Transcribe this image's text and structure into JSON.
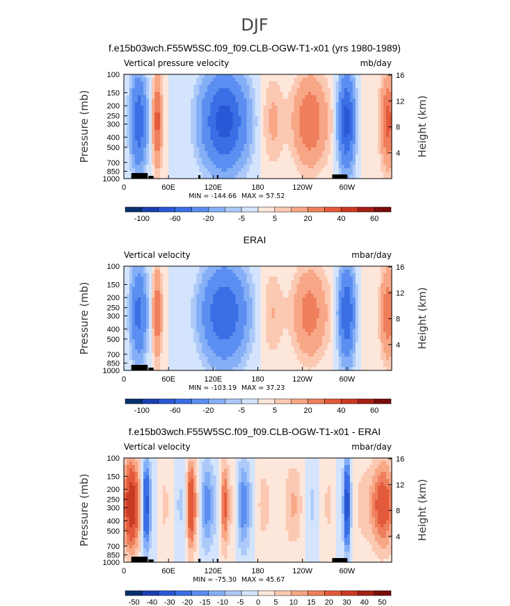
{
  "figure": {
    "title": "DJF"
  },
  "chart_data": [
    {
      "type": "heatmap",
      "title": "f.e15b03wch.F55W5SC.f09_f09.CLB-OGW-T1-x01 (yrs 1980-1989)",
      "left_label": "Vertical pressure velocity",
      "units": "mb/day",
      "ylabel": "Pressure (mb)",
      "ylabel_right": "Height (km)",
      "xticks": [
        "0",
        "60E",
        "120E",
        "180",
        "120W",
        "60W"
      ],
      "yticks": [
        "100",
        "150",
        "200",
        "250",
        "300",
        "400",
        "500",
        "700",
        "850",
        "1000"
      ],
      "yticks_right": [
        "16",
        "12",
        "8",
        "4"
      ],
      "min_label": "MIN = -144.66",
      "max_label": "MAX = 57.52",
      "colorbar_labels": [
        "-100",
        "-60",
        "-20",
        "-5",
        "5",
        "20",
        "40",
        "60"
      ],
      "colorbar_levels": [
        -120,
        -100,
        -80,
        -60,
        -40,
        -20,
        -10,
        -5,
        0,
        5,
        10,
        20,
        30,
        40,
        50,
        60,
        70
      ],
      "min": -144.66,
      "max": 57.52,
      "colors": [
        "#08306b",
        "#1a3fb0",
        "#2a57d6",
        "#3a6ee4",
        "#5b8ef0",
        "#84aff6",
        "#acc9f9",
        "#d3e4fc",
        "#fde6da",
        "#fbc8b2",
        "#f7a686",
        "#ef7f5c",
        "#e35a3b",
        "#c93a24",
        "#a52015",
        "#7a0d0b"
      ]
    },
    {
      "type": "heatmap",
      "title": "ERAI",
      "left_label": "Vertical velocity",
      "units": "mbar/day",
      "ylabel": "Pressure (mb)",
      "ylabel_right": "Height (km)",
      "xticks": [
        "0",
        "60E",
        "120E",
        "180",
        "120W",
        "60W"
      ],
      "yticks": [
        "100",
        "150",
        "200",
        "250",
        "300",
        "400",
        "500",
        "700",
        "850",
        "1000"
      ],
      "yticks_right": [
        "16",
        "12",
        "8",
        "4"
      ],
      "min_label": "MIN = -103.19",
      "max_label": "MAX = 37.23",
      "colorbar_labels": [
        "-100",
        "-60",
        "-20",
        "-5",
        "5",
        "20",
        "40",
        "60"
      ],
      "colorbar_levels": [
        -120,
        -100,
        -80,
        -60,
        -40,
        -20,
        -10,
        -5,
        0,
        5,
        10,
        20,
        30,
        40,
        50,
        60,
        70
      ],
      "min": -103.19,
      "max": 37.23,
      "colors": [
        "#08306b",
        "#1a3fb0",
        "#2a57d6",
        "#3a6ee4",
        "#5b8ef0",
        "#84aff6",
        "#acc9f9",
        "#d3e4fc",
        "#fde6da",
        "#fbc8b2",
        "#f7a686",
        "#ef7f5c",
        "#e35a3b",
        "#c93a24",
        "#a52015",
        "#7a0d0b"
      ]
    },
    {
      "type": "heatmap",
      "title": "f.e15b03wch.F55W5SC.f09_f09.CLB-OGW-T1-x01 - ERAI",
      "left_label": "Vertical velocity",
      "units": "mbar/day",
      "ylabel": "Pressure (mb)",
      "ylabel_right": "Height (km)",
      "xticks": [
        "0",
        "60E",
        "120E",
        "180",
        "120W",
        "60W"
      ],
      "yticks": [
        "100",
        "150",
        "200",
        "250",
        "300",
        "400",
        "500",
        "700",
        "850",
        "1000"
      ],
      "yticks_right": [
        "16",
        "12",
        "8",
        "4"
      ],
      "min_label": "MIN = -75.30",
      "max_label": "MAX = 45.67",
      "colorbar_labels": [
        "-50",
        "-40",
        "-30",
        "-20",
        "-15",
        "-10",
        "-5",
        "0",
        "5",
        "10",
        "15",
        "20",
        "30",
        "40",
        "50"
      ],
      "colorbar_levels": [
        -60,
        -50,
        -40,
        -30,
        -20,
        -15,
        -10,
        -5,
        0,
        5,
        10,
        15,
        20,
        30,
        40,
        50,
        60
      ],
      "min": -75.3,
      "max": 45.67,
      "colors": [
        "#08306b",
        "#1a3fb0",
        "#2a57d6",
        "#3a6ee4",
        "#5b8ef0",
        "#84aff6",
        "#acc9f9",
        "#d3e4fc",
        "#fde6da",
        "#fbc8b2",
        "#f7a686",
        "#ef7f5c",
        "#e35a3b",
        "#c93a24",
        "#a52015",
        "#7a0d0b"
      ]
    }
  ]
}
